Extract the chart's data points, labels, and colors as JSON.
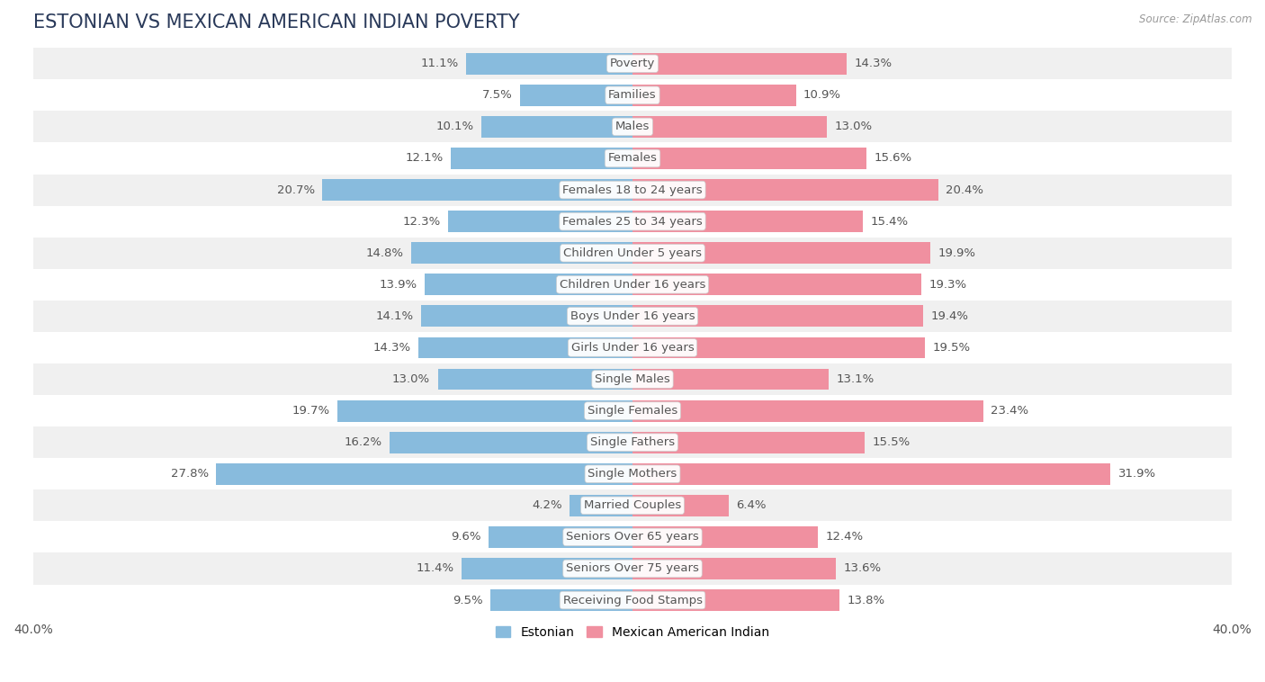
{
  "title": "ESTONIAN VS MEXICAN AMERICAN INDIAN POVERTY",
  "source": "Source: ZipAtlas.com",
  "categories": [
    "Poverty",
    "Families",
    "Males",
    "Females",
    "Females 18 to 24 years",
    "Females 25 to 34 years",
    "Children Under 5 years",
    "Children Under 16 years",
    "Boys Under 16 years",
    "Girls Under 16 years",
    "Single Males",
    "Single Females",
    "Single Fathers",
    "Single Mothers",
    "Married Couples",
    "Seniors Over 65 years",
    "Seniors Over 75 years",
    "Receiving Food Stamps"
  ],
  "estonian": [
    11.1,
    7.5,
    10.1,
    12.1,
    20.7,
    12.3,
    14.8,
    13.9,
    14.1,
    14.3,
    13.0,
    19.7,
    16.2,
    27.8,
    4.2,
    9.6,
    11.4,
    9.5
  ],
  "mexican": [
    14.3,
    10.9,
    13.0,
    15.6,
    20.4,
    15.4,
    19.9,
    19.3,
    19.4,
    19.5,
    13.1,
    23.4,
    15.5,
    31.9,
    6.4,
    12.4,
    13.6,
    13.8
  ],
  "estonian_color": "#88BBDD",
  "mexican_color": "#F090A0",
  "estonian_label": "Estonian",
  "mexican_label": "Mexican American Indian",
  "axis_limit": 40.0,
  "bg_color": "#ffffff",
  "row_color_even": "#f0f0f0",
  "row_color_odd": "#ffffff",
  "bar_height": 0.68,
  "label_fontsize": 9.5,
  "value_fontsize": 9.5,
  "title_fontsize": 15,
  "legend_fontsize": 10,
  "title_color": "#2a3a5a",
  "value_color": "#555555",
  "label_color": "#555555"
}
